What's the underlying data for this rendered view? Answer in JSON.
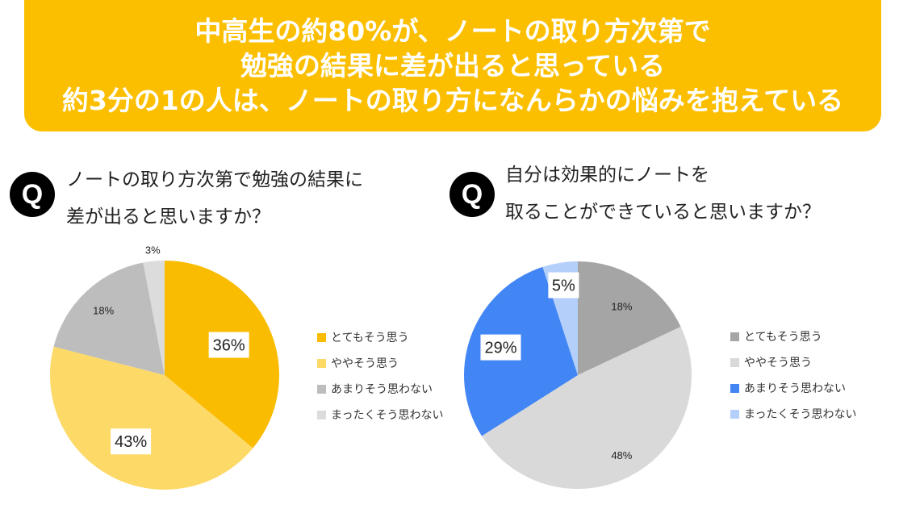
{
  "header": {
    "lines": [
      "中高生の約80%が、ノートの取り方次第で",
      "勉強の結果に差が出ると思っている",
      "約3分の1の人は、ノートの取り方になんらかの悩みを抱えている"
    ],
    "background": "#FBBF00"
  },
  "q_icon_label": "Q",
  "chart_data": [
    {
      "type": "pie",
      "title_lines": [
        "ノートの取り方次第で勉強の結果に",
        "差が出ると思いますか？"
      ],
      "categories": [
        "とてもそう思う",
        "ややそう思う",
        "あまりそう思わない",
        "まったくそう思わない"
      ],
      "values": [
        36,
        43,
        18,
        3
      ],
      "labels": [
        "36%",
        "43%",
        "18%",
        "3%"
      ],
      "colors": [
        "#F9BC00",
        "#FDD968",
        "#BDBDBD",
        "#DCDCDC"
      ],
      "legend": "right",
      "start": "top",
      "direction": "clockwise"
    },
    {
      "type": "pie",
      "title_lines": [
        "自分は効果的にノートを",
        "取ることができていると思いますか？"
      ],
      "categories": [
        "とてもそう思う",
        "ややそう思う",
        "あまりそう思わない",
        "まったくそう思わない"
      ],
      "values": [
        18,
        48,
        29,
        5
      ],
      "labels": [
        "18%",
        "48%",
        "29%",
        "5%"
      ],
      "colors": [
        "#A5A5A5",
        "#D9D9D9",
        "#4285F4",
        "#B4CFFA"
      ],
      "legend": "right",
      "start": "top",
      "direction": "clockwise"
    }
  ]
}
